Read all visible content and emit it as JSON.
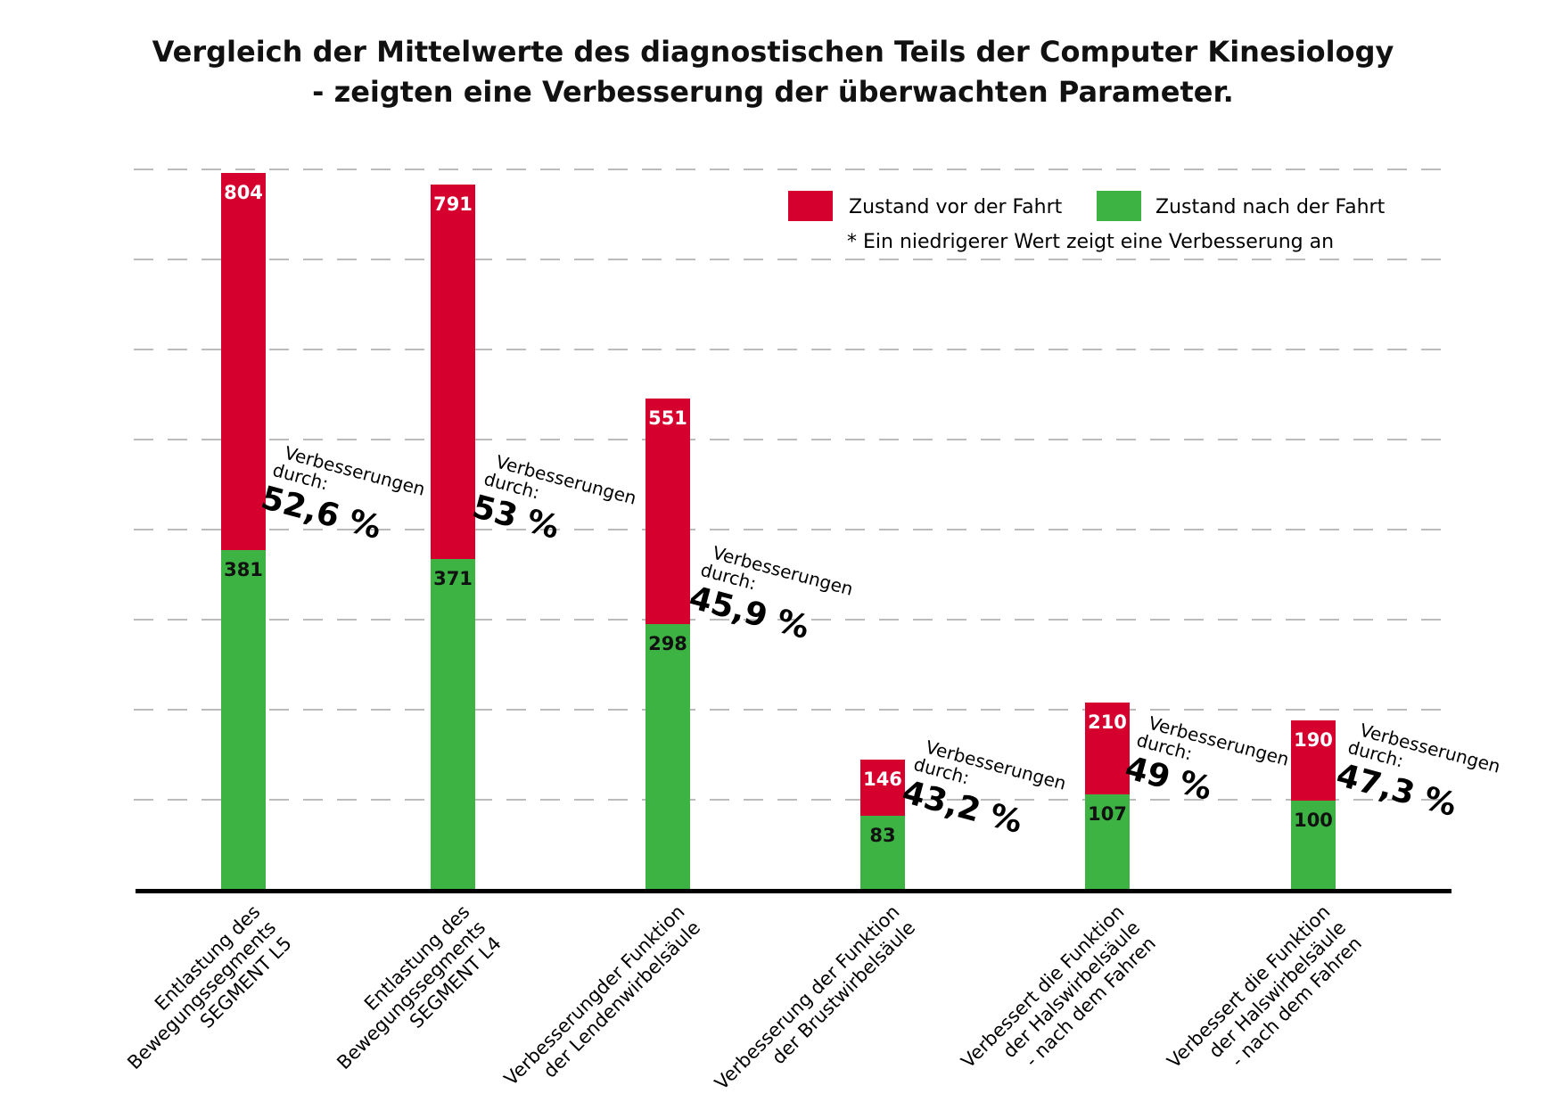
{
  "chart_data": {
    "type": "bar",
    "stacking": "overlay",
    "title": "Vergleich der Mittelwerte des diagnostischen Teils der Computer Kinesiology",
    "subtitle": "- zeigten eine Verbesserung der überwachten Parameter.",
    "categories": [
      [
        "Entlastung des",
        "Bewegungssegments",
        "SEGMENT L5"
      ],
      [
        "Entlastung des",
        "Bewegungssegments",
        "SEGMENT L4"
      ],
      [
        "Verbesserungder Funktion",
        "der Lendenwirbelsäule"
      ],
      [
        "Verbesserung der Funktion",
        "der Brustwirbelsäule"
      ],
      [
        "Verbessert die Funktion",
        "der Halswirbelsäule",
        "- nach dem Fahren"
      ],
      [
        "Verbessert die Funktion",
        "der Halswirbelsäule",
        "- nach dem Fahren"
      ]
    ],
    "series": [
      {
        "name": "Zustand vor der Fahrt",
        "color": "#d6002f",
        "values": [
          804,
          791,
          551,
          146,
          210,
          190
        ]
      },
      {
        "name": "Zustand nach der Fahrt",
        "color": "#3db344",
        "values": [
          381,
          371,
          298,
          83,
          107,
          100
        ]
      }
    ],
    "improvements": [
      {
        "label": [
          "Verbesserungen",
          "durch:"
        ],
        "value": "52,6 %"
      },
      {
        "label": [
          "Verbesserungen",
          "durch:"
        ],
        "value": "53 %"
      },
      {
        "label": [
          "Verbesserungen",
          "durch:"
        ],
        "value": "45,9 %"
      },
      {
        "label": [
          "Verbesserungen",
          "durch:"
        ],
        "value": "43,2 %"
      },
      {
        "label": [
          "Verbesserungen",
          "durch:"
        ],
        "value": "49 %"
      },
      {
        "label": [
          "Verbesserungen",
          "durch:"
        ],
        "value": "47,3 %"
      }
    ],
    "note": "* Ein niedrigerer Wert zeigt eine Verbesserung an",
    "ylim": [
      0,
      808
    ],
    "grid": true,
    "grid_style": "dashed",
    "legend_position": "top-right",
    "axis_color": "#000000",
    "grid_color": "#bbbbbb"
  }
}
